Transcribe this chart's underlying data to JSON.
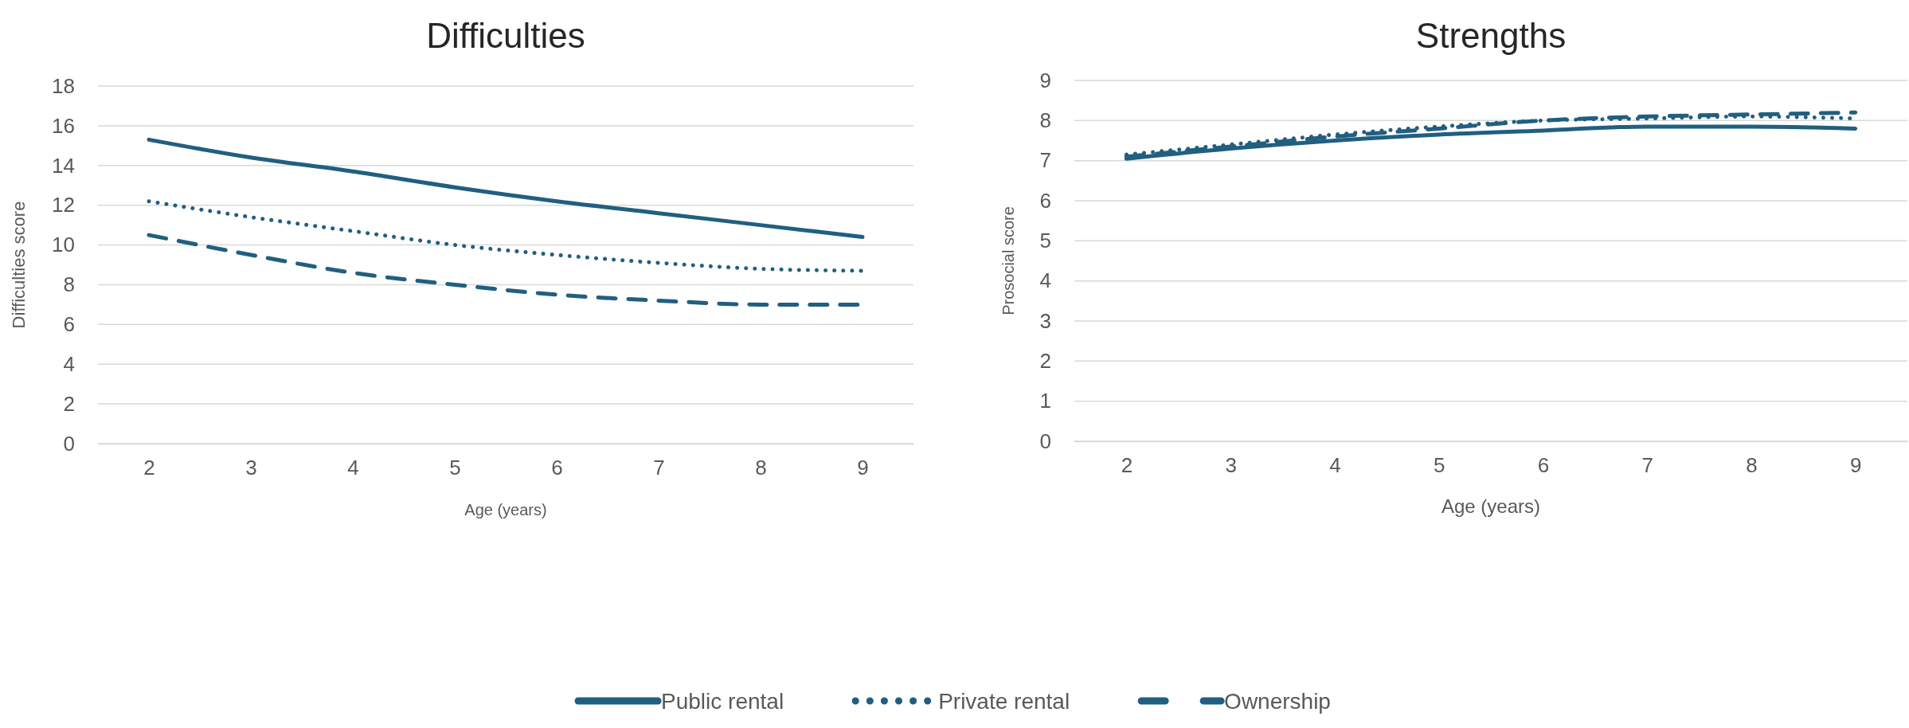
{
  "chart_data": [
    {
      "type": "line",
      "title": "Difficulties",
      "xlabel": "Age (years)",
      "ylabel": "Difficulties score",
      "categories": [
        "2",
        "3",
        "4",
        "5",
        "6",
        "7",
        "8",
        "9"
      ],
      "ylim": [
        0,
        18
      ],
      "yticks": [
        0,
        2,
        4,
        6,
        8,
        10,
        12,
        14,
        16,
        18
      ],
      "grid": "y",
      "legend": "bottom",
      "marker": "none",
      "series": [
        {
          "name": "Public rental",
          "color": "#215f80",
          "line_style": "solid",
          "values": [
            15.3,
            14.4,
            13.7,
            12.9,
            12.2,
            11.6,
            11.0,
            10.4
          ]
        },
        {
          "name": "Private rental",
          "color": "#215f80",
          "line_style": "dotted",
          "values": [
            12.2,
            11.4,
            10.7,
            10.0,
            9.5,
            9.1,
            8.8,
            8.7
          ]
        },
        {
          "name": "Ownership",
          "color": "#215f80",
          "line_style": "dashed",
          "values": [
            10.5,
            9.5,
            8.6,
            8.0,
            7.5,
            7.2,
            7.0,
            7.0
          ]
        }
      ]
    },
    {
      "type": "line",
      "title": "Strengths",
      "xlabel": "Age (years)",
      "ylabel": "Prosocial score",
      "categories": [
        "2",
        "3",
        "4",
        "5",
        "6",
        "7",
        "8",
        "9"
      ],
      "ylim": [
        0,
        9
      ],
      "yticks": [
        0,
        1,
        2,
        3,
        4,
        5,
        6,
        7,
        8,
        9
      ],
      "grid": "y",
      "marker": "none",
      "series": [
        {
          "color": "#215f80",
          "line_style": "solid",
          "values": [
            7.05,
            7.3,
            7.5,
            7.65,
            7.75,
            7.85,
            7.85,
            7.8
          ]
        },
        {
          "color": "#215f80",
          "line_style": "dotted",
          "values": [
            7.15,
            7.4,
            7.65,
            7.85,
            8.0,
            8.05,
            8.1,
            8.05
          ]
        },
        {
          "color": "#215f80",
          "line_style": "dashed",
          "values": [
            7.1,
            7.35,
            7.6,
            7.8,
            8.0,
            8.1,
            8.15,
            8.2
          ]
        }
      ]
    }
  ]
}
